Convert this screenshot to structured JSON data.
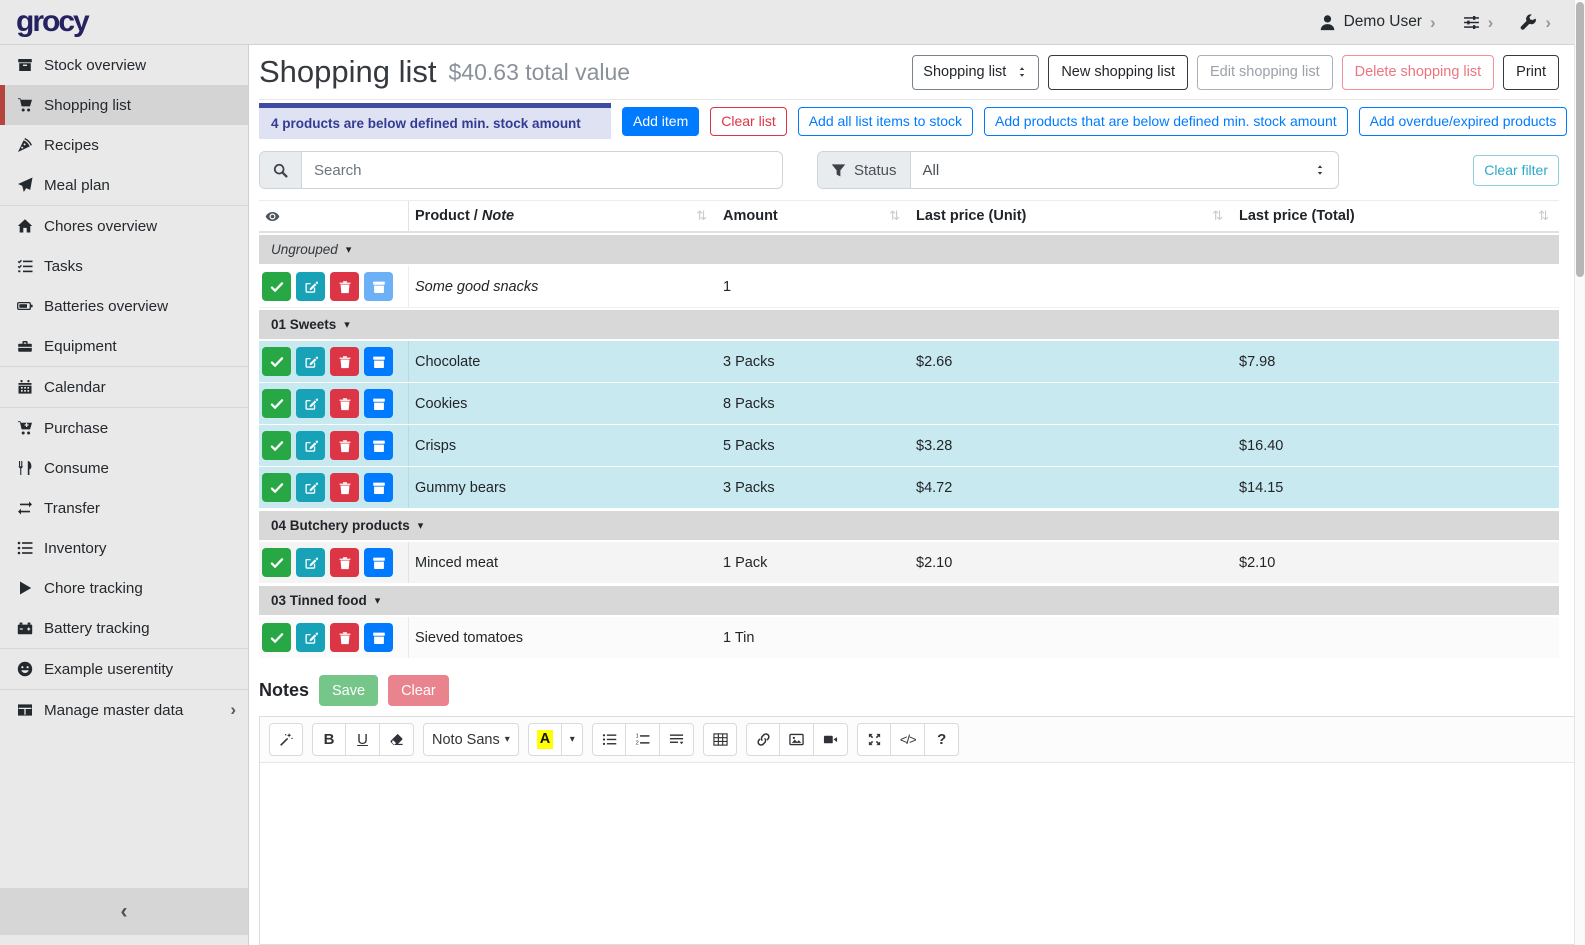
{
  "topbar": {
    "logo": "grocy",
    "user": "Demo User"
  },
  "icons": {
    "sort": "⇅",
    "caret_down": "▾",
    "chevron_right": "›",
    "chevron_left": "‹"
  },
  "sidebar": {
    "items": [
      {
        "icon": "box",
        "label": "Stock overview"
      },
      {
        "icon": "cart",
        "label": "Shopping list",
        "active": true
      },
      {
        "icon": "pizza",
        "label": "Recipes"
      },
      {
        "icon": "plane",
        "label": "Meal plan"
      },
      {
        "icon": "home",
        "label": "Chores overview",
        "divider_before": true
      },
      {
        "icon": "tasks",
        "label": "Tasks"
      },
      {
        "icon": "battery",
        "label": "Batteries overview"
      },
      {
        "icon": "toolbox",
        "label": "Equipment"
      },
      {
        "icon": "calendar",
        "label": "Calendar",
        "divider_before": true
      },
      {
        "icon": "cart-plus",
        "label": "Purchase",
        "divider_before": true
      },
      {
        "icon": "utensils",
        "label": "Consume"
      },
      {
        "icon": "exchange",
        "label": "Transfer"
      },
      {
        "icon": "list",
        "label": "Inventory"
      },
      {
        "icon": "play",
        "label": "Chore tracking"
      },
      {
        "icon": "car-battery",
        "label": "Battery tracking"
      },
      {
        "icon": "smiley",
        "label": "Example userentity",
        "divider_before": true
      },
      {
        "icon": "table",
        "label": "Manage master data",
        "divider_before": true,
        "chevron": true
      }
    ]
  },
  "page": {
    "title": "Shopping list",
    "subtitle": "$40.63 total value"
  },
  "list_toolbar": {
    "selector": "Shopping list",
    "new": "New shopping list",
    "edit": "Edit shopping list",
    "delete": "Delete shopping list",
    "print": "Print"
  },
  "alert": {
    "text": "4 products are below defined min. stock amount"
  },
  "actions": [
    {
      "label": "Add item",
      "style": "primary"
    },
    {
      "label": "Clear list",
      "style": "outline-danger"
    },
    {
      "label": "Add all list items to stock",
      "style": "outline-primary"
    },
    {
      "label": "Add products that are below defined min. stock amount",
      "style": "outline-primary"
    },
    {
      "label": "Add overdue/expired products",
      "style": "outline-primary"
    }
  ],
  "filters": {
    "search_placeholder": "Search",
    "status_label": "Status",
    "status_value": "All",
    "clear_filter": "Clear filter"
  },
  "table": {
    "product_header": "Product /",
    "note_header": "Note",
    "amount_header": "Amount",
    "unit_header": "Last price (Unit)",
    "total_header": "Last price (Total)",
    "groups": [
      {
        "name": "Ungrouped",
        "italic": true,
        "rows": [
          {
            "product": "Some good snacks",
            "product_italic": true,
            "amount": "1",
            "unit_price": "",
            "total_price": "",
            "row_style": "plain",
            "stock_btn": "light"
          }
        ]
      },
      {
        "name": "01 Sweets",
        "rows": [
          {
            "product": "Chocolate",
            "amount": "3 Packs",
            "unit_price": "$2.66",
            "total_price": "$7.98",
            "row_style": "info"
          },
          {
            "product": "Cookies",
            "amount": "8 Packs",
            "unit_price": "",
            "total_price": "",
            "row_style": "info"
          },
          {
            "product": "Crisps",
            "amount": "5 Packs",
            "unit_price": "$3.28",
            "total_price": "$16.40",
            "row_style": "info"
          },
          {
            "product": "Gummy bears",
            "amount": "3 Packs",
            "unit_price": "$4.72",
            "total_price": "$14.15",
            "row_style": "info"
          }
        ]
      },
      {
        "name": "04 Butchery products",
        "rows": [
          {
            "product": "Minced meat",
            "amount": "1 Pack",
            "unit_price": "$2.10",
            "total_price": "$2.10",
            "row_style": "stripe"
          }
        ]
      },
      {
        "name": "03 Tinned food",
        "rows": [
          {
            "product": "Sieved tomatoes",
            "amount": "1 Tin",
            "unit_price": "",
            "total_price": "",
            "row_style": "plain2"
          }
        ]
      }
    ]
  },
  "notes": {
    "label": "Notes",
    "save": "Save",
    "clear": "Clear"
  },
  "editor": {
    "font_name": "Noto Sans",
    "groups": [
      {
        "buttons": [
          {
            "icon": "magic",
            "name": "style-button"
          }
        ]
      },
      {
        "buttons": [
          {
            "text": "B",
            "cls": "bold",
            "name": "bold-button"
          },
          {
            "text": "U",
            "cls": "underline",
            "name": "underline-button"
          },
          {
            "icon": "eraser",
            "name": "clear-format-button"
          }
        ]
      },
      {
        "buttons": [
          {
            "text": "Noto Sans",
            "caret": true,
            "name": "font-family-button"
          }
        ]
      },
      {
        "buttons": [
          {
            "color_a": true,
            "name": "text-color-button"
          },
          {
            "caret": true,
            "cls": "narrow",
            "name": "color-picker-caret-button"
          }
        ]
      },
      {
        "buttons": [
          {
            "icon": "list-ul",
            "name": "unordered-list-button"
          },
          {
            "icon": "list-ol",
            "name": "ordered-list-button"
          },
          {
            "icon": "paragraph",
            "name": "paragraph-style-button"
          }
        ]
      },
      {
        "buttons": [
          {
            "icon": "table-grid",
            "name": "insert-table-button"
          }
        ]
      },
      {
        "buttons": [
          {
            "icon": "link",
            "name": "insert-link-button"
          },
          {
            "icon": "picture",
            "name": "insert-picture-button"
          },
          {
            "icon": "video",
            "name": "insert-video-button"
          }
        ]
      },
      {
        "buttons": [
          {
            "icon": "arrows",
            "name": "fullscreen-button"
          },
          {
            "text": "</>",
            "cls": "code",
            "name": "code-view-button"
          },
          {
            "text": "?",
            "cls": "help",
            "name": "help-button"
          }
        ]
      }
    ]
  },
  "colors": {
    "primary": "#007bff",
    "danger": "#dc3545",
    "success": "#28a745",
    "teal": "#17a2b8",
    "info_row_bg": "#c9e9f0",
    "alert_bar": "#3d4ca0",
    "alert_bg": "#dfe2f2",
    "alert_text": "#333b93",
    "sidebar_accent": "#b5463f",
    "logo": "#262262",
    "highlight_yellow": "#ffff00"
  }
}
